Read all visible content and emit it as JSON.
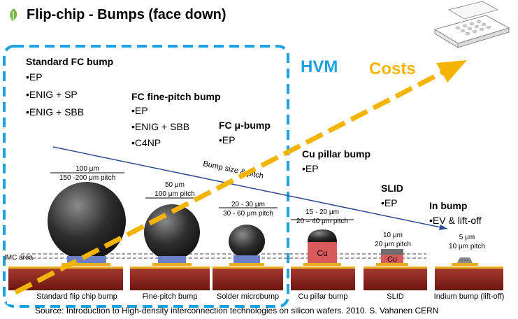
{
  "title": "Flip-chip - Bumps (face down)",
  "hvm_label": "HVM",
  "costs_label": "Costs",
  "trend_label": "Bump size & pitch",
  "imc_label": "IMC area",
  "groups": {
    "standard": {
      "title": "Standard FC bump",
      "items": [
        "•EP",
        "•ENIG + SP",
        "•ENIG + SBB"
      ]
    },
    "fine": {
      "title": "FC fine-pitch bump",
      "items": [
        "•EP",
        "•ENIG + SBB",
        "•C4NP"
      ]
    },
    "micro": {
      "title": "FC μ-bump",
      "items": [
        "•EP"
      ]
    },
    "pillar": {
      "title": "Cu pillar bump",
      "items": [
        "•EP"
      ]
    },
    "slid": {
      "title": "SLID",
      "items": [
        "•EP"
      ]
    },
    "indium": {
      "title": "In bump",
      "items": [
        "•EV & lift-off"
      ]
    }
  },
  "bumps": {
    "standard": {
      "size": "100 μm",
      "pitch": "150 -200 μm pitch",
      "caption": "Standard flip chip bump"
    },
    "fine": {
      "size": "50 μm",
      "pitch": "100 μm pitch",
      "caption": "Fine-pitch bump"
    },
    "micro": {
      "size": "20 - 30 μm",
      "pitch": "30 - 60 μm pitch",
      "caption": "Solder microbump"
    },
    "pillar": {
      "size": "15 - 20 μm",
      "pitch": "20 – 40 μm pitch",
      "caption": "Cu pillar bump",
      "inner": "Cu"
    },
    "slid": {
      "size": "10 μm",
      "pitch": "20 μm pitch",
      "caption": "SLID",
      "inner": "Cu"
    },
    "indium": {
      "size": "5 μm",
      "pitch": "10 μm pitch",
      "caption": "Indium bump (lift-off)"
    }
  },
  "source": "Source: Introduction to High-density interconnection technologies on silicon wafers. 2010. S. Vahanen CERN",
  "colors": {
    "hvm": "#1aa3e0",
    "costs": "#f5b400",
    "trend": "#2a4b8d",
    "substrate": "#8b1c17",
    "pad": "#e8b020",
    "ubm": "#6b7fc4",
    "cu": "#d85a5a"
  }
}
